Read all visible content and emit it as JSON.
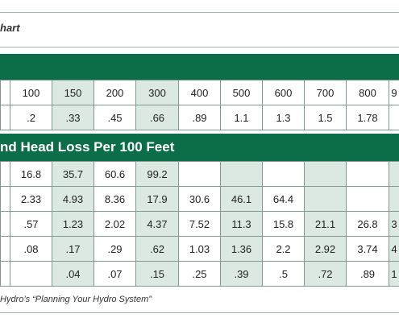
{
  "title": "hart",
  "section_title": "nd Head Loss Per 100 Feet",
  "source": "Hydro’s “Planning Your Hydro System”",
  "top_table": {
    "rows": [
      [
        "",
        "100",
        "150",
        "200",
        "300",
        "400",
        "500",
        "600",
        "700",
        "800",
        "9"
      ],
      [
        "",
        ".2",
        ".33",
        ".45",
        ".66",
        ".89",
        "1.1",
        "1.3",
        "1.5",
        "1.78",
        ""
      ]
    ]
  },
  "bottom_table": {
    "rows": [
      [
        "",
        "16.8",
        "35.7",
        "60.6",
        "99.2",
        "",
        "",
        "",
        "",
        "",
        ""
      ],
      [
        "",
        "2.33",
        "4.93",
        "8.36",
        "17.9",
        "30.6",
        "46.1",
        "64.4",
        "",
        "",
        ""
      ],
      [
        "",
        ".57",
        "1.23",
        "2.02",
        "4.37",
        "7.52",
        "11.3",
        "15.8",
        "21.1",
        "26.8",
        "3"
      ],
      [
        "",
        ".08",
        ".17",
        ".29",
        ".62",
        "1.03",
        "1.36",
        "2.2",
        "2.92",
        "3.74",
        "4"
      ],
      [
        "",
        "",
        ".04",
        ".07",
        ".15",
        ".25",
        ".39",
        ".5",
        ".72",
        ".89",
        "1"
      ]
    ]
  },
  "colors": {
    "header_band": "#0c6e49",
    "cell_tint": "#dbe9e2",
    "grid_line": "#7e9a8f"
  }
}
